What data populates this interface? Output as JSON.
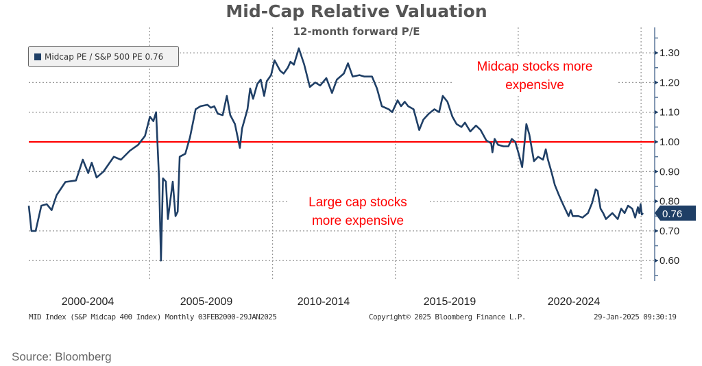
{
  "chart_data": {
    "type": "line",
    "title": "Mid-Cap Relative Valuation",
    "subtitle": "12-month forward P/E",
    "xlabel": "",
    "ylabel": "",
    "ylim": [
      0.55,
      1.36
    ],
    "xlim": [
      2000.08,
      2025.08
    ],
    "y_ticks": [
      "1.30",
      "1.20",
      "1.10",
      "1.00",
      "0.90",
      "0.80",
      "0.70",
      "0.60"
    ],
    "x_tick_labels": [
      "2000-2004",
      "2005-2009",
      "2010-2014",
      "2015-2019",
      "2020-2024"
    ],
    "grid": true,
    "legend_position": "top-left",
    "reference_line": {
      "y": 1.0,
      "color": "#ff0000"
    },
    "series": [
      {
        "name": "Midcap PE / S&P 500 PE 0.76",
        "color": "#1f3f66",
        "last_value": "0.76",
        "x": [
          2000.08,
          2000.19,
          2000.36,
          2000.59,
          2000.81,
          2001.01,
          2001.21,
          2001.57,
          2002.0,
          2002.28,
          2002.5,
          2002.64,
          2002.84,
          2003.12,
          2003.54,
          2003.83,
          2004.19,
          2004.53,
          2004.81,
          2005.01,
          2005.15,
          2005.26,
          2005.38,
          2005.46,
          2005.54,
          2005.66,
          2005.74,
          2005.94,
          2006.05,
          2006.14,
          2006.22,
          2006.45,
          2006.64,
          2006.87,
          2007.07,
          2007.35,
          2007.49,
          2007.63,
          2007.77,
          2007.97,
          2008.14,
          2008.28,
          2008.47,
          2008.67,
          2008.76,
          2008.98,
          2009.09,
          2009.21,
          2009.38,
          2009.52,
          2009.66,
          2009.77,
          2009.94,
          2010.08,
          2010.31,
          2010.45,
          2010.62,
          2010.73,
          2010.87,
          2011.07,
          2011.29,
          2011.52,
          2011.74,
          2011.94,
          2012.19,
          2012.42,
          2012.62,
          2012.9,
          2013.07,
          2013.26,
          2013.54,
          2013.74,
          2014.05,
          2014.25,
          2014.45,
          2014.73,
          2014.87,
          2015.09,
          2015.23,
          2015.38,
          2015.52,
          2015.74,
          2015.97,
          2016.14,
          2016.36,
          2016.59,
          2016.78,
          2016.93,
          2017.12,
          2017.32,
          2017.49,
          2017.69,
          2017.83,
          2018.05,
          2018.28,
          2018.47,
          2018.7,
          2018.9,
          2018.95,
          2019.04,
          2019.18,
          2019.4,
          2019.6,
          2019.74,
          2019.88,
          2020.02,
          2020.16,
          2020.33,
          2020.45,
          2020.64,
          2020.81,
          2021.01,
          2021.12,
          2021.21,
          2021.35,
          2021.49,
          2021.66,
          2021.85,
          2022.05,
          2022.14,
          2022.22,
          2022.45,
          2022.62,
          2022.84,
          2023.01,
          2023.15,
          2023.23,
          2023.35,
          2023.46,
          2023.57,
          2023.83,
          2024.05,
          2024.19,
          2024.33,
          2024.47,
          2024.64,
          2024.76,
          2024.87,
          2024.93,
          2024.98,
          2025.03,
          2025.08
        ],
        "y": [
          0.785,
          0.7,
          0.7,
          0.785,
          0.79,
          0.77,
          0.82,
          0.865,
          0.87,
          0.94,
          0.895,
          0.93,
          0.88,
          0.9,
          0.95,
          0.94,
          0.97,
          0.99,
          1.02,
          1.085,
          1.07,
          1.1,
          0.877,
          0.6,
          0.877,
          0.866,
          0.74,
          0.866,
          0.75,
          0.765,
          0.95,
          0.96,
          1.015,
          1.11,
          1.12,
          1.125,
          1.115,
          1.12,
          1.095,
          1.09,
          1.155,
          1.09,
          1.06,
          0.98,
          1.045,
          1.11,
          1.18,
          1.145,
          1.195,
          1.21,
          1.155,
          1.205,
          1.225,
          1.275,
          1.24,
          1.23,
          1.25,
          1.27,
          1.26,
          1.315,
          1.26,
          1.185,
          1.2,
          1.19,
          1.215,
          1.165,
          1.21,
          1.23,
          1.265,
          1.22,
          1.225,
          1.22,
          1.22,
          1.18,
          1.12,
          1.11,
          1.1,
          1.14,
          1.12,
          1.135,
          1.12,
          1.11,
          1.04,
          1.075,
          1.095,
          1.11,
          1.1,
          1.155,
          1.135,
          1.085,
          1.06,
          1.05,
          1.065,
          1.035,
          1.055,
          1.04,
          1.005,
          0.995,
          0.965,
          1.01,
          0.99,
          0.985,
          0.985,
          1.01,
          1.0,
          0.96,
          0.915,
          1.06,
          1.025,
          0.935,
          0.95,
          0.94,
          0.975,
          0.94,
          0.9,
          0.855,
          0.82,
          0.785,
          0.75,
          0.77,
          0.75,
          0.75,
          0.745,
          0.76,
          0.795,
          0.84,
          0.835,
          0.775,
          0.76,
          0.74,
          0.76,
          0.74,
          0.775,
          0.76,
          0.785,
          0.775,
          0.745,
          0.78,
          0.76,
          0.79,
          0.755,
          0.76
        ]
      }
    ],
    "annotations": [
      {
        "lines": [
          "Midcap stocks more",
          "expensive"
        ],
        "color": "#ff0000"
      },
      {
        "lines": [
          "Large cap stocks",
          "more expensive"
        ],
        "color": "#ff0000"
      }
    ]
  },
  "footer": {
    "index": "MID Index (S&P Midcap 400 Index)  Monthly 03FEB2000-29JAN2025",
    "copyright": "Copyright© 2025 Bloomberg Finance L.P.",
    "timestamp": "29-Jan-2025 09:30:19"
  },
  "source": "Source: Bloomberg"
}
